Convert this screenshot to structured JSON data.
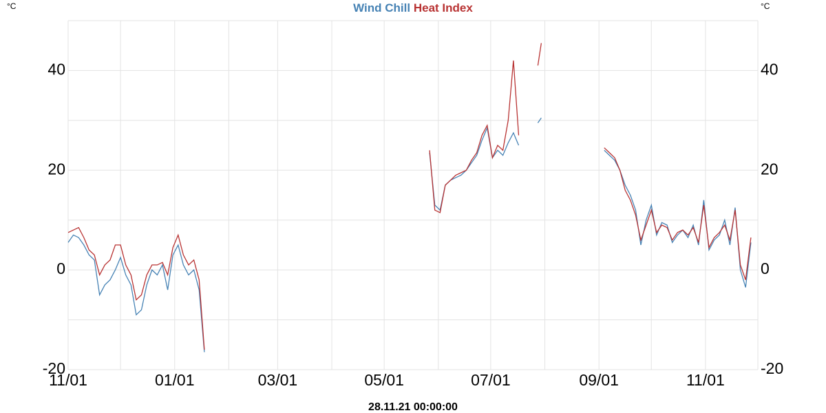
{
  "chart_data": {
    "type": "line",
    "y_label": "°C",
    "y2_label": "°C",
    "footer": "28.11.21 00:00:00",
    "x": [
      0,
      3,
      6,
      9,
      12,
      15,
      18,
      21,
      24,
      27,
      30,
      33,
      36,
      39,
      42,
      45,
      48,
      51,
      54,
      57,
      60,
      63,
      66,
      69,
      72,
      75,
      78,
      150,
      207,
      210,
      213,
      216,
      219,
      222,
      225,
      228,
      231,
      234,
      237,
      240,
      243,
      246,
      249,
      252,
      255,
      258,
      264,
      269,
      271,
      290,
      307,
      310,
      313,
      316,
      319,
      322,
      325,
      328,
      331,
      334,
      337,
      340,
      343,
      346,
      349,
      352,
      355,
      358,
      361,
      364,
      367,
      370,
      373,
      376,
      379,
      382,
      385,
      388,
      391
    ],
    "series": [
      {
        "name": "Wind Chill",
        "color": "#4682b4",
        "values": [
          5.5,
          7,
          6.5,
          5,
          3,
          2,
          -5,
          -3,
          -2,
          0,
          2.5,
          -1,
          -3,
          -9,
          -8,
          -3,
          0,
          -1,
          1,
          -4,
          3,
          5,
          1,
          -1,
          0,
          -4,
          -16.5,
          null,
          23.5,
          13,
          12,
          17,
          18,
          18.5,
          19,
          20,
          21.5,
          23,
          26,
          28.5,
          22.5,
          24,
          23,
          25.5,
          27.5,
          25,
          null,
          29.5,
          30.5,
          null,
          24,
          23,
          22,
          20,
          17,
          15,
          12,
          5,
          10,
          13,
          7,
          9.5,
          9,
          5.5,
          7,
          8,
          6.5,
          9,
          5,
          14,
          4,
          6,
          7,
          10,
          5,
          12.5,
          0,
          -3.5,
          5.5
        ]
      },
      {
        "name": "Heat Index",
        "color": "#b83232",
        "values": [
          7.5,
          8,
          8.5,
          6.5,
          4,
          3,
          -1,
          1,
          2,
          5,
          5,
          1,
          -1,
          -6,
          -5,
          -1,
          1,
          1,
          1.5,
          -1,
          4.5,
          7,
          3,
          1,
          2,
          -2,
          -16,
          null,
          24,
          12,
          11.5,
          17,
          18,
          19,
          19.5,
          20,
          22,
          23.5,
          27,
          29,
          22.5,
          25,
          24,
          30,
          42,
          27,
          null,
          41,
          45.5,
          null,
          24.5,
          23.5,
          22.5,
          20,
          16,
          14,
          11,
          6,
          9,
          12,
          7.5,
          9,
          8.5,
          6,
          7.5,
          8,
          7,
          8.5,
          5.5,
          13,
          4.5,
          6.5,
          7.5,
          9,
          6,
          12,
          1,
          -2,
          6.5
        ]
      }
    ],
    "xlim": [
      0,
      395
    ],
    "xticks": [
      {
        "value": 0,
        "label": "11/01"
      },
      {
        "value": 30,
        "label": null
      },
      {
        "value": 61,
        "label": "01/01"
      },
      {
        "value": 92,
        "label": null
      },
      {
        "value": 120,
        "label": "03/01"
      },
      {
        "value": 151,
        "label": null
      },
      {
        "value": 181,
        "label": "05/01"
      },
      {
        "value": 212,
        "label": null
      },
      {
        "value": 242,
        "label": "07/01"
      },
      {
        "value": 273,
        "label": null
      },
      {
        "value": 304,
        "label": "09/01"
      },
      {
        "value": 334,
        "label": null
      },
      {
        "value": 365,
        "label": "11/01"
      }
    ],
    "ylim": [
      -20,
      50
    ],
    "yticks": [
      -20,
      {
        "value": -10,
        "label": null
      },
      0,
      {
        "value": 10,
        "label": null
      },
      20,
      {
        "value": 30,
        "label": null
      },
      40,
      {
        "value": 50,
        "label": null
      }
    ],
    "y2lim": [
      -20,
      50
    ],
    "y2ticks": [
      -20,
      0,
      20,
      40
    ],
    "grid": true
  }
}
